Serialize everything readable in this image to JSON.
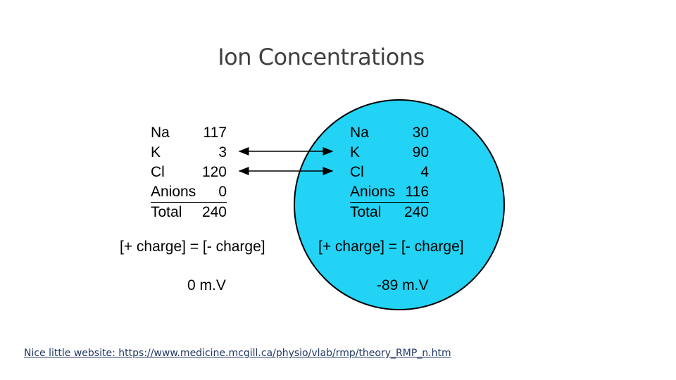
{
  "title": "Ion Concentrations",
  "colors": {
    "cell_fill": "#22d3f5",
    "cell_stroke": "#000000",
    "title": "#404040",
    "link": "#1f3864"
  },
  "outside": {
    "rows": [
      {
        "ion": "Na",
        "value": "117"
      },
      {
        "ion": "K",
        "value": "3"
      },
      {
        "ion": "Cl",
        "value": "120"
      },
      {
        "ion": "Anions",
        "value": "0"
      }
    ],
    "total": {
      "ion": "Total",
      "value": "240"
    },
    "charge_balance": "[+ charge] = [- charge]",
    "potential": "0 m.V"
  },
  "inside": {
    "rows": [
      {
        "ion": "Na",
        "value": "30"
      },
      {
        "ion": "K",
        "value": "90"
      },
      {
        "ion": "Cl",
        "value": "4"
      },
      {
        "ion": "Anions",
        "value": "116"
      }
    ],
    "total": {
      "ion": "Total",
      "value": "240"
    },
    "charge_balance": "[+ charge] = [- charge]",
    "potential": "-89 m.V"
  },
  "arrows": [
    {
      "ion": "K",
      "direction": "bidirectional"
    },
    {
      "ion": "Cl",
      "direction": "bidirectional"
    }
  ],
  "footer": {
    "link_text": "Nice little website: https://www.medicine.mcgill.ca/physio/vlab/rmp/theory_RMP_n.htm"
  }
}
